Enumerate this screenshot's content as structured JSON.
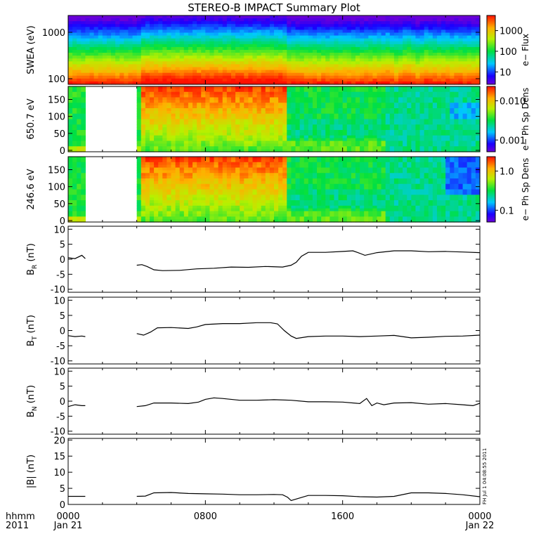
{
  "title": "STEREO-B IMPACT Summary Plot",
  "footer": {
    "row_label_top": "hhmm",
    "row_label_bottom": "2011",
    "x_ticks": [
      "0000",
      "0800",
      "1600",
      "0000"
    ],
    "x_dates": [
      "Jan 21",
      "Jan 22"
    ]
  },
  "stamp": "FH Jul 1 04:08:55 2011",
  "chart_data": [
    {
      "type": "heatmap",
      "ylabel": "SWEA (eV)",
      "colorbar_label": "e− Flux",
      "colorbar_ticks": [
        "1000",
        "100",
        "10"
      ],
      "colorbar_scale": "log",
      "colorbar_range": [
        3,
        3000
      ],
      "y_scale": "log",
      "y_ticks": [
        "1000",
        "100"
      ],
      "ylim": [
        95,
        1900
      ],
      "xlim_hours": [
        0,
        24
      ],
      "description_bands": "high flux (red) at low energy, decreasing to blue at high energy"
    },
    {
      "type": "heatmap",
      "ylabel": "650.7 eV",
      "colorbar_label": "e− Ph Sp Dens",
      "colorbar_ticks": [
        "0.010",
        "0.001"
      ],
      "colorbar_scale": "log",
      "colorbar_range": [
        0.0005,
        0.02
      ],
      "y_ticks": [
        "150",
        "100",
        "50",
        "0"
      ],
      "ylim": [
        0,
        180
      ],
      "data_gap_hours": [
        1.0,
        4.0
      ]
    },
    {
      "type": "heatmap",
      "ylabel": "246.6 eV",
      "colorbar_label": "e− Ph Sp Dens",
      "colorbar_ticks": [
        "1.0",
        "0.1"
      ],
      "colorbar_scale": "log",
      "colorbar_range": [
        0.08,
        1.6
      ],
      "y_ticks": [
        "150",
        "100",
        "50",
        "0"
      ],
      "ylim": [
        0,
        180
      ],
      "data_gap_hours": [
        1.0,
        4.0
      ]
    },
    {
      "type": "line",
      "ylabel": "B_R (nT)",
      "ylabel_main": "B",
      "ylabel_sub": "R",
      "ylabel_unit": " (nT)",
      "ylim": [
        -11,
        11
      ],
      "y_ticks": [
        "10",
        "5",
        "0",
        "-5",
        "-10"
      ],
      "segments": [
        {
          "x": [
            0,
            0.4,
            0.8,
            1.0
          ],
          "y": [
            0.5,
            0.2,
            1.3,
            0.2
          ]
        },
        {
          "x": [
            4.0,
            4.3,
            4.6,
            5.0,
            5.5,
            6.5,
            7.5,
            8.5,
            9.5,
            10.5,
            11.5,
            12.5,
            13.0,
            13.3,
            13.6,
            14.0,
            15.0,
            16.0,
            16.6,
            17.0,
            17.3,
            18.0,
            19.0,
            20.0,
            21.0,
            22.0,
            23.0,
            24.0
          ],
          "y": [
            -2.0,
            -1.8,
            -2.4,
            -3.5,
            -3.8,
            -3.7,
            -3.2,
            -3.0,
            -2.6,
            -2.7,
            -2.4,
            -2.6,
            -2.0,
            -1.0,
            1.0,
            2.3,
            2.3,
            2.6,
            2.8,
            2.0,
            1.3,
            2.2,
            2.8,
            2.8,
            2.5,
            2.6,
            2.4,
            2.2
          ]
        }
      ]
    },
    {
      "type": "line",
      "ylabel": "B_T (nT)",
      "ylabel_main": "B",
      "ylabel_sub": "T",
      "ylabel_unit": " (nT)",
      "ylim": [
        -11,
        11
      ],
      "y_ticks": [
        "10",
        "5",
        "0",
        "-5",
        "-10"
      ],
      "segments": [
        {
          "x": [
            0,
            0.4,
            0.8,
            1.0
          ],
          "y": [
            -1.7,
            -2.0,
            -1.8,
            -2.0
          ]
        },
        {
          "x": [
            4.0,
            4.4,
            4.8,
            5.2,
            6.0,
            7.0,
            7.5,
            8.0,
            9.0,
            10.0,
            11.0,
            11.8,
            12.2,
            12.6,
            13.0,
            13.3,
            14.0,
            15.0,
            16.0,
            17.0,
            18.0,
            19.0,
            20.0,
            21.0,
            22.0,
            23.0,
            24.0
          ],
          "y": [
            -1.0,
            -1.5,
            -0.5,
            0.9,
            1.0,
            0.7,
            1.2,
            2.0,
            2.3,
            2.3,
            2.6,
            2.6,
            2.2,
            0.0,
            -1.8,
            -2.6,
            -2.0,
            -1.8,
            -1.8,
            -2.0,
            -1.8,
            -1.6,
            -2.4,
            -2.2,
            -1.9,
            -1.8,
            -1.5
          ]
        }
      ]
    },
    {
      "type": "line",
      "ylabel": "B_N (nT)",
      "ylabel_main": "B",
      "ylabel_sub": "N",
      "ylabel_unit": " (nT)",
      "ylim": [
        -11,
        11
      ],
      "y_ticks": [
        "10",
        "5",
        "0",
        "-5",
        "-10"
      ],
      "segments": [
        {
          "x": [
            0,
            0.4,
            0.8,
            1.0
          ],
          "y": [
            -1.8,
            -1.2,
            -1.5,
            -1.5
          ]
        },
        {
          "x": [
            4.0,
            4.5,
            5.0,
            6.0,
            7.0,
            7.6,
            8.0,
            8.5,
            9.0,
            10.0,
            11.0,
            12.0,
            13.0,
            14.0,
            15.0,
            16.0,
            17.0,
            17.4,
            17.7,
            18.0,
            18.4,
            19.0,
            20.0,
            21.0,
            22.0,
            23.0,
            23.6,
            24.0
          ],
          "y": [
            -1.8,
            -1.5,
            -0.6,
            -0.6,
            -0.8,
            -0.3,
            0.6,
            1.1,
            0.9,
            0.3,
            0.3,
            0.5,
            0.3,
            -0.2,
            -0.2,
            -0.3,
            -0.8,
            0.9,
            -1.5,
            -0.6,
            -1.2,
            -0.6,
            -0.5,
            -1.0,
            -0.8,
            -1.2,
            -1.5,
            -0.7
          ]
        }
      ]
    },
    {
      "type": "line",
      "ylabel": "|B| (nT)",
      "ylim": [
        0,
        20.5
      ],
      "y_ticks": [
        "20",
        "15",
        "10",
        "5",
        "0"
      ],
      "segments": [
        {
          "x": [
            0,
            0.5,
            1.0
          ],
          "y": [
            2.5,
            2.5,
            2.5
          ]
        },
        {
          "x": [
            4.0,
            4.5,
            5.0,
            6.0,
            7.0,
            8.0,
            9.0,
            10.0,
            11.0,
            12.0,
            12.5,
            12.8,
            13.0,
            13.5,
            14.0,
            15.0,
            16.0,
            17.0,
            18.0,
            19.0,
            20.0,
            21.0,
            22.0,
            23.0,
            24.0
          ],
          "y": [
            2.5,
            2.6,
            3.6,
            3.7,
            3.4,
            3.3,
            3.2,
            3.0,
            3.0,
            3.1,
            3.0,
            2.2,
            1.2,
            2.0,
            2.8,
            2.8,
            2.7,
            2.4,
            2.3,
            2.5,
            3.6,
            3.6,
            3.4,
            3.0,
            2.4
          ]
        }
      ]
    }
  ]
}
